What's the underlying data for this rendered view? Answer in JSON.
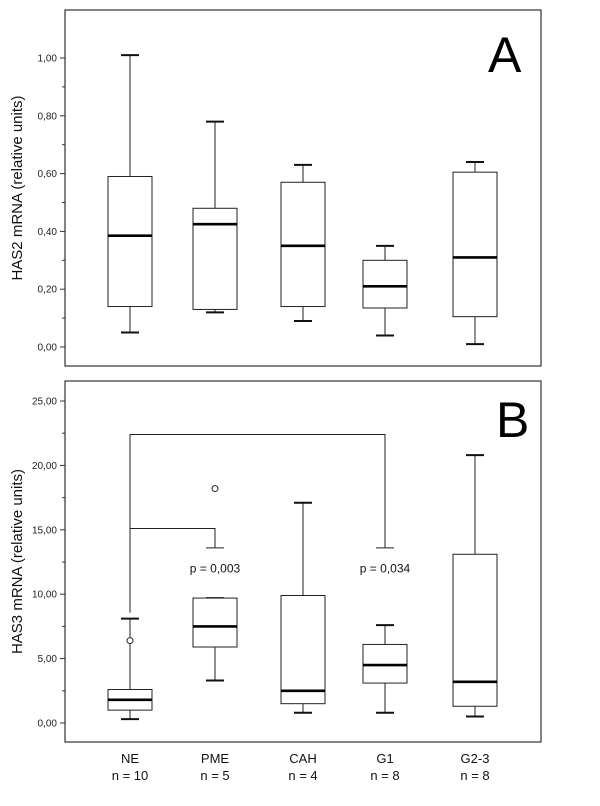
{
  "chart_data": [
    {
      "type": "box",
      "panel_label": "A",
      "ylabel": "HAS2 mRNA (relative units)",
      "ylim": [
        0,
        1.0
      ],
      "yticks": [
        "0,00",
        "0,20",
        "0,40",
        "0,60",
        "0,80",
        "1,00"
      ],
      "categories": [
        "NE",
        "PME",
        "CAH",
        "G1",
        "G2-3"
      ],
      "boxes": [
        {
          "min": 0.05,
          "q1": 0.14,
          "median": 0.385,
          "q3": 0.59,
          "max": 1.01,
          "outliers": []
        },
        {
          "min": 0.12,
          "q1": 0.13,
          "median": 0.425,
          "q3": 0.48,
          "max": 0.78,
          "outliers": []
        },
        {
          "min": 0.09,
          "q1": 0.14,
          "median": 0.35,
          "q3": 0.57,
          "max": 0.63,
          "outliers": []
        },
        {
          "min": 0.04,
          "q1": 0.135,
          "median": 0.21,
          "q3": 0.3,
          "max": 0.35,
          "outliers": []
        },
        {
          "min": 0.01,
          "q1": 0.105,
          "median": 0.31,
          "q3": 0.605,
          "max": 0.64,
          "outliers": []
        }
      ]
    },
    {
      "type": "box",
      "panel_label": "B",
      "ylabel": "HAS3 mRNA (relative units)",
      "ylim": [
        0,
        25
      ],
      "yticks": [
        "0,00",
        "5,00",
        "10,00",
        "15,00",
        "20,00",
        "25,00"
      ],
      "categories": [
        "NE",
        "PME",
        "CAH",
        "G1",
        "G2-3"
      ],
      "boxes": [
        {
          "min": 0.3,
          "q1": 1.0,
          "median": 1.8,
          "q3": 2.6,
          "max": 8.1,
          "outliers": [
            6.4
          ]
        },
        {
          "min": 3.3,
          "q1": 5.9,
          "median": 7.5,
          "q3": 9.7,
          "max": 9.7,
          "outliers": [
            18.2
          ]
        },
        {
          "min": 0.8,
          "q1": 1.5,
          "median": 2.5,
          "q3": 9.9,
          "max": 17.1,
          "outliers": []
        },
        {
          "min": 0.8,
          "q1": 3.1,
          "median": 4.5,
          "q3": 6.1,
          "max": 7.6,
          "outliers": []
        },
        {
          "min": 0.5,
          "q1": 1.3,
          "median": 3.2,
          "q3": 13.1,
          "max": 20.8,
          "outliers": []
        }
      ],
      "annotations": [
        {
          "from": "NE",
          "to": "PME",
          "bracket_y": 15.1,
          "text": "p = 0,003",
          "text_y": 12.0
        },
        {
          "from": "NE",
          "to": "G1",
          "bracket_y": 22.4,
          "text": "p = 0,034",
          "text_y": 12.0
        }
      ]
    }
  ],
  "x_labels": {
    "names": [
      "NE",
      "PME",
      "CAH",
      "G1",
      "G2-3"
    ],
    "counts": [
      "n = 10",
      "n = 5",
      "n = 4",
      "n = 8",
      "n = 8"
    ]
  }
}
